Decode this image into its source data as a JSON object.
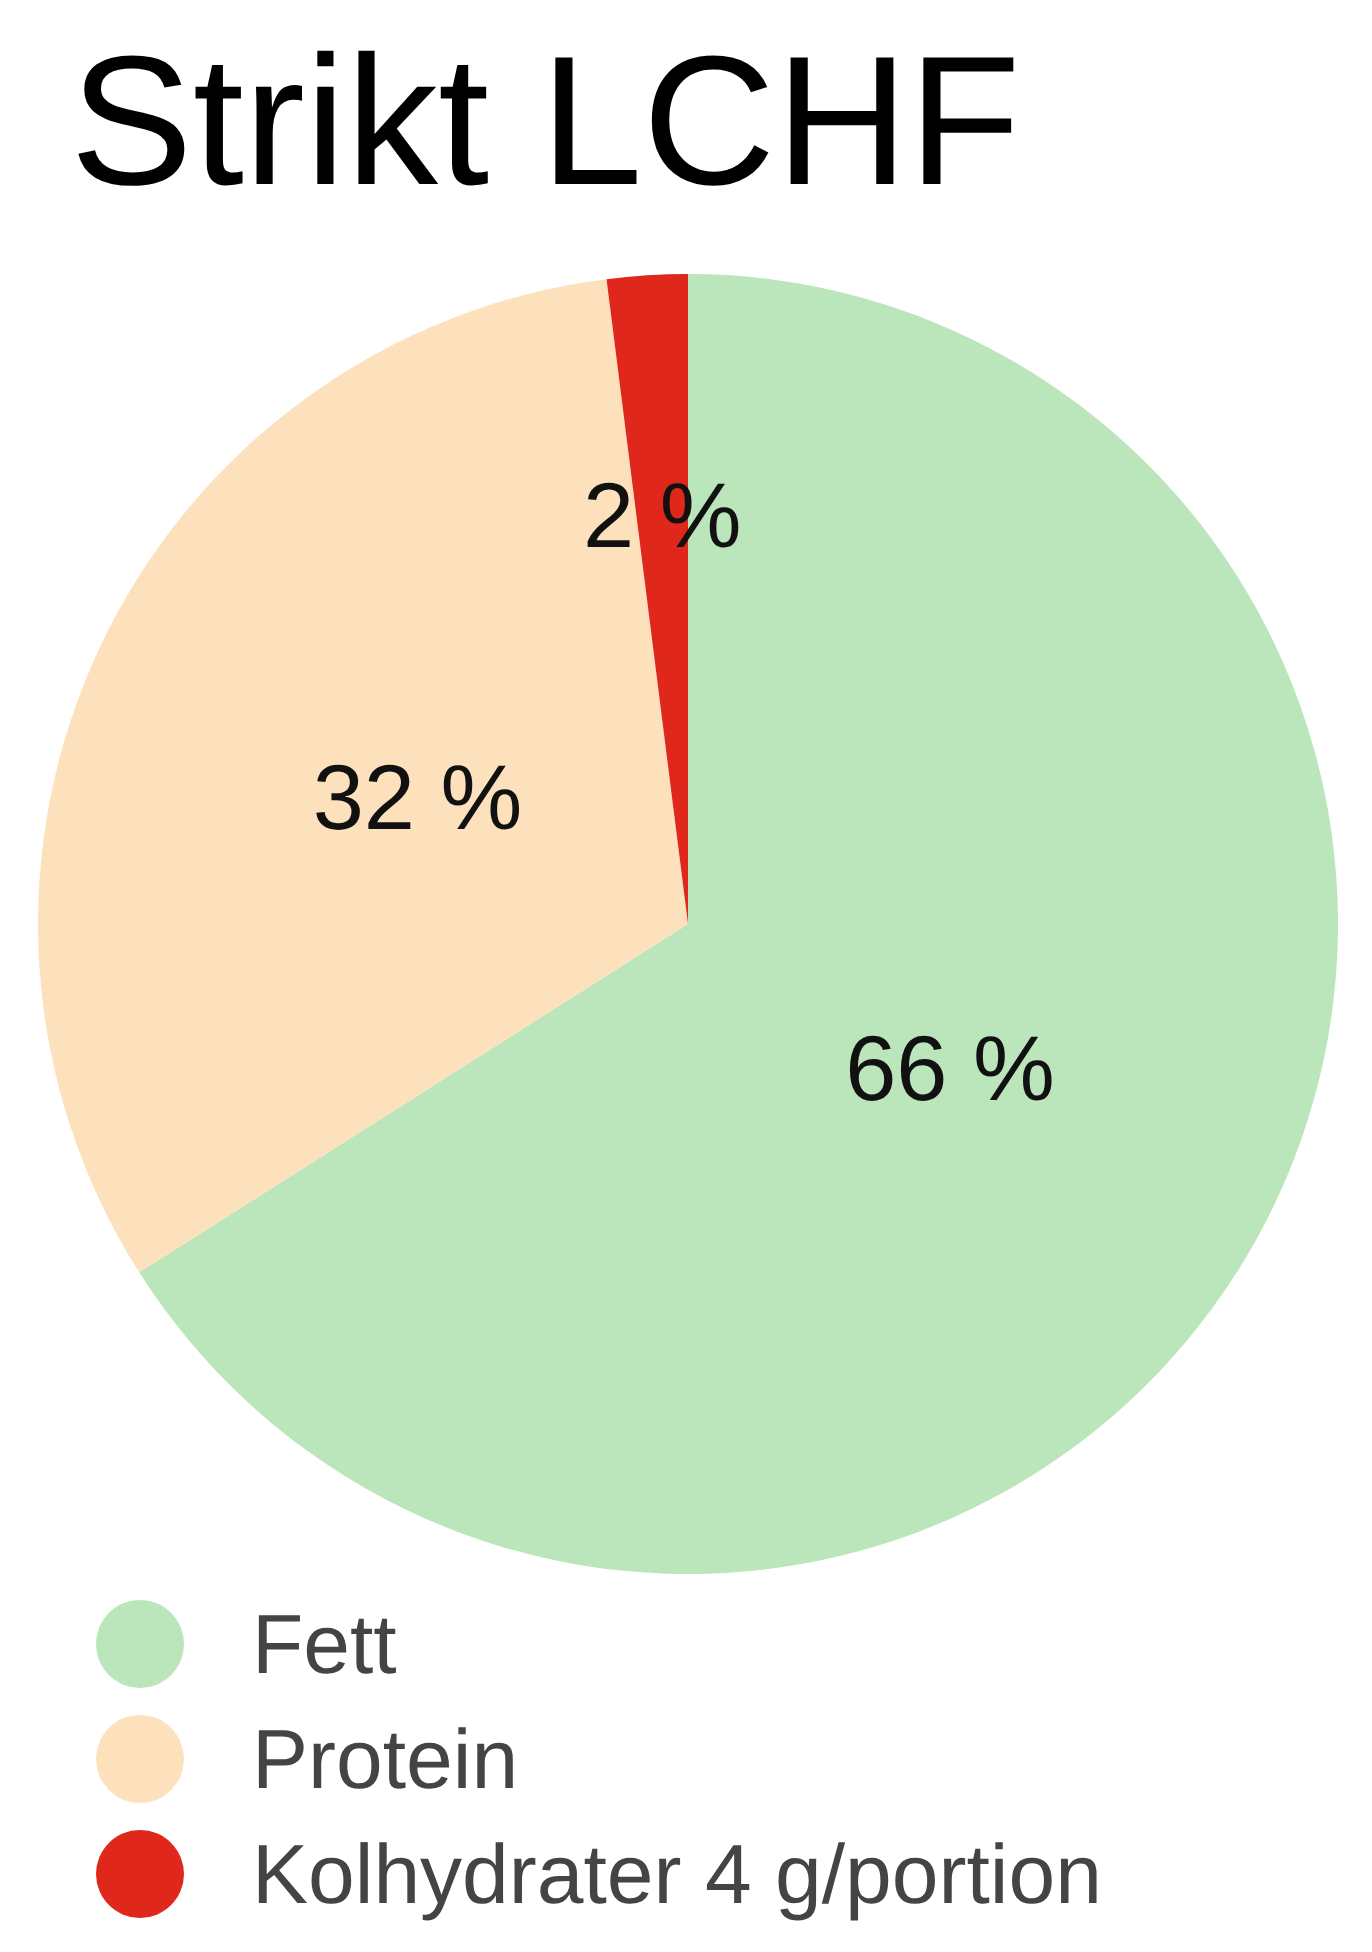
{
  "chart_data": {
    "type": "pie",
    "title": "Strikt LCHF",
    "categories": [
      "Fett",
      "Protein",
      "Kolhydrater 4 g/portion"
    ],
    "values": [
      66,
      32,
      2
    ],
    "colors": [
      "#bbe5ba",
      "#fde1bc",
      "#e0271b"
    ],
    "value_labels": [
      "66 %",
      "32 %",
      "2 %"
    ],
    "legend": "bottom"
  }
}
